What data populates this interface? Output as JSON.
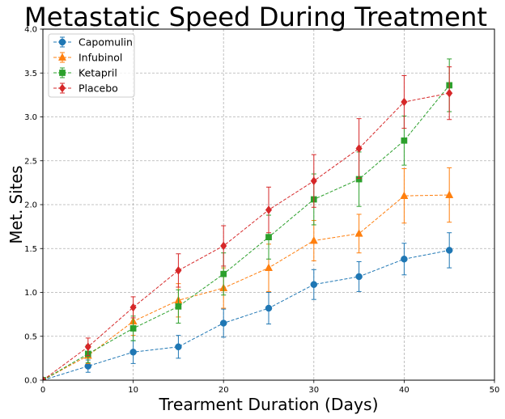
{
  "chart_data": {
    "type": "line",
    "title": "Metastatic Speed During Treatment",
    "xlabel": "Trearment Duration (Days)",
    "ylabel": "Met. Sites",
    "x": [
      0,
      5,
      10,
      15,
      20,
      25,
      30,
      35,
      40,
      45
    ],
    "xlim": [
      0,
      50
    ],
    "ylim": [
      0,
      4
    ],
    "xticks": [
      "0",
      "10",
      "20",
      "30",
      "40",
      "50"
    ],
    "yticks": [
      "0.0",
      "0.5",
      "1.0",
      "1.5",
      "2.0",
      "2.5",
      "3.0",
      "3.5",
      "4.0"
    ],
    "grid": true,
    "grid_style": "dashed",
    "line_style": "dashed",
    "error_bars": true,
    "legend_position": "top-left",
    "series": [
      {
        "name": "Capomulin",
        "color": "#1f77b4",
        "marker": "circle",
        "values": [
          0,
          0.16,
          0.32,
          0.38,
          0.65,
          0.82,
          1.09,
          1.18,
          1.38,
          1.48
        ],
        "errors": [
          0,
          0.07,
          0.13,
          0.13,
          0.16,
          0.18,
          0.17,
          0.17,
          0.18,
          0.2
        ]
      },
      {
        "name": "Infubinol",
        "color": "#ff7f0e",
        "marker": "triangle",
        "values": [
          0,
          0.28,
          0.67,
          0.91,
          1.05,
          1.28,
          1.59,
          1.67,
          2.1,
          2.11
        ],
        "errors": [
          0,
          0.09,
          0.16,
          0.19,
          0.23,
          0.27,
          0.23,
          0.22,
          0.31,
          0.31
        ]
      },
      {
        "name": "Ketapril",
        "color": "#2ca02c",
        "marker": "square",
        "values": [
          0,
          0.3,
          0.59,
          0.84,
          1.21,
          1.63,
          2.06,
          2.29,
          2.73,
          3.36
        ],
        "errors": [
          0,
          0.1,
          0.14,
          0.19,
          0.24,
          0.25,
          0.29,
          0.31,
          0.28,
          0.3
        ]
      },
      {
        "name": "Placebo",
        "color": "#d62728",
        "marker": "diamond",
        "values": [
          0,
          0.38,
          0.83,
          1.25,
          1.53,
          1.94,
          2.27,
          2.64,
          3.17,
          3.27
        ],
        "errors": [
          0,
          0.1,
          0.12,
          0.19,
          0.23,
          0.26,
          0.3,
          0.34,
          0.3,
          0.3
        ]
      }
    ]
  }
}
